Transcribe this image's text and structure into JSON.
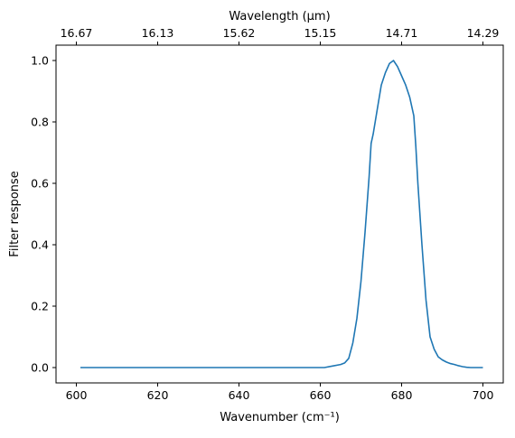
{
  "colors": {
    "series": "#1f77b4",
    "axis": "#000000",
    "background": "#ffffff"
  },
  "chart_data": {
    "type": "line",
    "title": "",
    "xlabel": "Wavenumber (cm⁻¹)",
    "ylabel": "Filter response",
    "top_xlabel": "Wavelength (μm)",
    "xlim": [
      595.0,
      705.0
    ],
    "ylim": [
      -0.05,
      1.05
    ],
    "grid": false,
    "legend": "none",
    "xticks": [
      600,
      620,
      640,
      660,
      680,
      700
    ],
    "xtick_labels": [
      "600",
      "620",
      "640",
      "660",
      "680",
      "700"
    ],
    "yticks": [
      0.0,
      0.2,
      0.4,
      0.6,
      0.8,
      1.0
    ],
    "ytick_labels": [
      "0.0",
      "0.2",
      "0.4",
      "0.6",
      "0.8",
      "1.0"
    ],
    "top_xticks": [
      600,
      620,
      640,
      660,
      680,
      700
    ],
    "top_xtick_labels": [
      "16.67",
      "16.13",
      "15.62",
      "15.15",
      "14.71",
      "14.29"
    ],
    "series": [
      {
        "x": [
          601,
          610,
          620,
          630,
          640,
          650,
          661,
          663,
          665,
          666,
          667,
          668,
          669,
          670,
          671,
          672,
          672.5,
          673,
          674,
          675,
          676,
          677,
          678,
          679,
          680,
          681,
          682,
          683,
          683.5,
          684,
          685,
          686,
          687,
          688,
          689,
          690,
          691,
          692,
          693,
          694,
          695,
          696,
          697,
          698,
          700
        ],
        "y": [
          0.0,
          0.0,
          0.0,
          0.0,
          0.0,
          0.0,
          0.0,
          0.005,
          0.01,
          0.015,
          0.03,
          0.08,
          0.16,
          0.28,
          0.44,
          0.62,
          0.73,
          0.76,
          0.84,
          0.92,
          0.96,
          0.99,
          1.0,
          0.98,
          0.95,
          0.92,
          0.88,
          0.82,
          0.72,
          0.6,
          0.4,
          0.22,
          0.1,
          0.06,
          0.035,
          0.025,
          0.018,
          0.013,
          0.01,
          0.006,
          0.003,
          0.001,
          0.0,
          0.0,
          0.0
        ]
      }
    ]
  }
}
